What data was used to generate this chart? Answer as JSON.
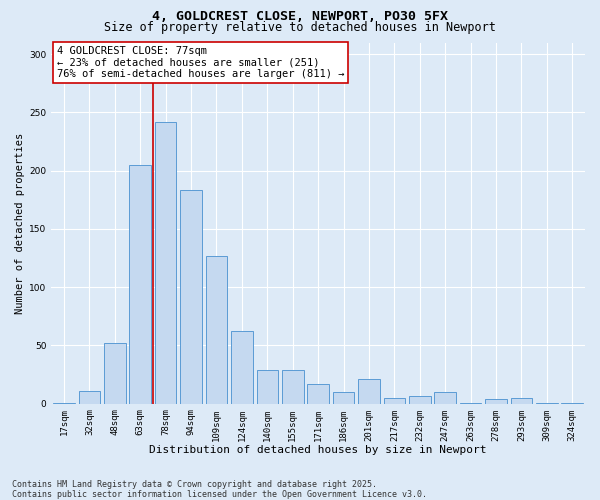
{
  "title": "4, GOLDCREST CLOSE, NEWPORT, PO30 5FX",
  "subtitle": "Size of property relative to detached houses in Newport",
  "xlabel": "Distribution of detached houses by size in Newport",
  "ylabel": "Number of detached properties",
  "bar_color": "#c5d9f0",
  "bar_edge_color": "#5b9bd5",
  "categories": [
    "17sqm",
    "32sqm",
    "48sqm",
    "63sqm",
    "78sqm",
    "94sqm",
    "109sqm",
    "124sqm",
    "140sqm",
    "155sqm",
    "171sqm",
    "186sqm",
    "201sqm",
    "217sqm",
    "232sqm",
    "247sqm",
    "263sqm",
    "278sqm",
    "293sqm",
    "309sqm",
    "324sqm"
  ],
  "values": [
    1,
    11,
    52,
    205,
    242,
    183,
    127,
    62,
    29,
    29,
    17,
    10,
    21,
    5,
    7,
    10,
    1,
    4,
    5,
    1,
    1
  ],
  "vline_x_index": 4,
  "vline_color": "#cc0000",
  "annotation_text": "4 GOLDCREST CLOSE: 77sqm\n← 23% of detached houses are smaller (251)\n76% of semi-detached houses are larger (811) →",
  "annotation_box_color": "#ffffff",
  "annotation_box_edge_color": "#cc0000",
  "ylim": [
    0,
    310
  ],
  "yticks": [
    0,
    50,
    100,
    150,
    200,
    250,
    300
  ],
  "footer_text": "Contains HM Land Registry data © Crown copyright and database right 2025.\nContains public sector information licensed under the Open Government Licence v3.0.",
  "background_color": "#ddeaf7",
  "grid_color": "#ffffff",
  "title_fontsize": 9.5,
  "subtitle_fontsize": 8.5,
  "tick_fontsize": 6.5,
  "label_fontsize": 8,
  "annotation_fontsize": 7.5,
  "footer_fontsize": 6.0,
  "ylabel_fontsize": 7.5
}
